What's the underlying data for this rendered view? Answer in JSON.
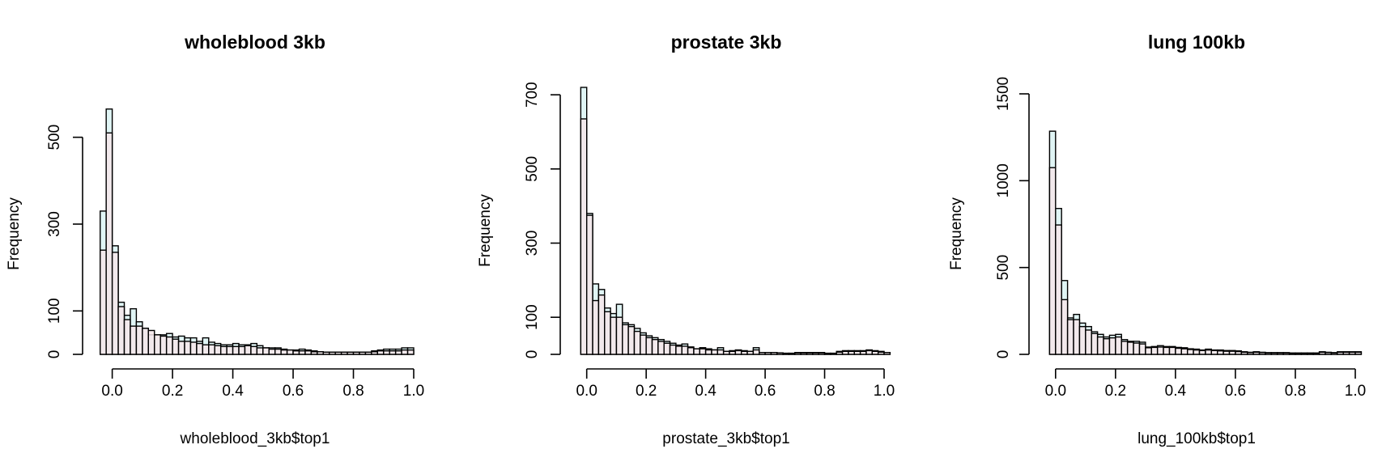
{
  "colors": {
    "series_a": "#e0f5f5",
    "series_b": "#f5e6ea",
    "stroke": "#000000"
  },
  "chart_data": [
    {
      "type": "bar",
      "title": "wholeblood 3kb",
      "xlabel": "wholeblood_3kb$top1",
      "ylabel": "Frequency",
      "xlim": [
        -0.05,
        1.0
      ],
      "ylim": [
        0,
        600
      ],
      "xticks": [
        0.0,
        0.2,
        0.4,
        0.6,
        0.8,
        1.0
      ],
      "xtick_labels": [
        "0.0",
        "0.2",
        "0.4",
        "0.6",
        "0.8",
        "1.0"
      ],
      "yticks": [
        0,
        100,
        300,
        500
      ],
      "ytick_labels": [
        "0",
        "100",
        "300",
        "500"
      ],
      "bin_start": -0.04,
      "bin_width": 0.02,
      "series": [
        {
          "values": [
            330,
            565,
            250,
            120,
            90,
            105,
            75,
            60,
            45,
            45,
            45,
            48,
            40,
            42,
            38,
            38,
            30,
            38,
            28,
            25,
            22,
            22,
            25,
            22,
            22,
            25,
            20,
            15,
            15,
            15,
            12,
            10,
            10,
            12,
            10,
            8,
            6,
            5,
            5,
            5,
            5,
            5,
            5,
            5,
            5,
            8,
            10,
            12,
            12,
            12,
            15,
            15
          ]
        },
        {
          "values": [
            240,
            510,
            235,
            110,
            80,
            65,
            65,
            60,
            55,
            45,
            42,
            40,
            35,
            30,
            30,
            28,
            25,
            22,
            22,
            20,
            18,
            18,
            18,
            18,
            20,
            18,
            15,
            15,
            12,
            12,
            10,
            10,
            8,
            8,
            8,
            6,
            6,
            5,
            5,
            5,
            5,
            5,
            5,
            5,
            5,
            6,
            8,
            8,
            8,
            8,
            10,
            10
          ]
        }
      ]
    },
    {
      "type": "bar",
      "title": "prostate 3kb",
      "xlabel": "prostate_3kb$top1",
      "ylabel": "Frequency",
      "xlim": [
        -0.04,
        1.0
      ],
      "ylim": [
        0,
        720
      ],
      "xticks": [
        0.0,
        0.2,
        0.4,
        0.6,
        0.8,
        1.0
      ],
      "xtick_labels": [
        "0.0",
        "0.2",
        "0.4",
        "0.6",
        "0.8",
        "1.0"
      ],
      "yticks": [
        0,
        100,
        300,
        500,
        700
      ],
      "ytick_labels": [
        "0",
        "100",
        "300",
        "500",
        "700"
      ],
      "bin_start": -0.02,
      "bin_width": 0.02,
      "series": [
        {
          "values": [
            720,
            380,
            190,
            175,
            125,
            110,
            135,
            85,
            80,
            70,
            58,
            50,
            45,
            40,
            35,
            30,
            25,
            28,
            20,
            15,
            18,
            15,
            12,
            18,
            8,
            10,
            12,
            10,
            8,
            18,
            5,
            5,
            5,
            4,
            3,
            3,
            5,
            5,
            5,
            5,
            5,
            3,
            3,
            8,
            10,
            10,
            10,
            10,
            12,
            10,
            8,
            5
          ]
        },
        {
          "values": [
            635,
            375,
            145,
            160,
            115,
            100,
            100,
            80,
            75,
            62,
            52,
            45,
            40,
            35,
            30,
            25,
            22,
            22,
            18,
            15,
            15,
            12,
            12,
            12,
            8,
            8,
            10,
            8,
            8,
            12,
            5,
            5,
            5,
            4,
            3,
            3,
            4,
            4,
            4,
            4,
            4,
            3,
            3,
            6,
            8,
            8,
            8,
            8,
            10,
            8,
            6,
            5
          ]
        }
      ]
    },
    {
      "type": "bar",
      "title": "lung 100kb",
      "xlabel": "lung_100kb$top1",
      "ylabel": "Frequency",
      "xlim": [
        -0.04,
        1.0
      ],
      "ylim": [
        0,
        1500
      ],
      "xticks": [
        0.0,
        0.2,
        0.4,
        0.6,
        0.8,
        1.0
      ],
      "xtick_labels": [
        "0.0",
        "0.2",
        "0.4",
        "0.6",
        "0.8",
        "1.0"
      ],
      "yticks": [
        0,
        500,
        1000,
        1500
      ],
      "ytick_labels": [
        "0",
        "500",
        "1000",
        "1500"
      ],
      "bin_start": -0.02,
      "bin_width": 0.02,
      "series": [
        {
          "values": [
            1285,
            840,
            425,
            210,
            230,
            180,
            160,
            130,
            115,
            100,
            110,
            115,
            85,
            75,
            75,
            70,
            42,
            45,
            50,
            45,
            45,
            40,
            38,
            32,
            30,
            25,
            30,
            25,
            25,
            22,
            22,
            20,
            15,
            12,
            15,
            12,
            10,
            10,
            10,
            10,
            8,
            8,
            8,
            8,
            8,
            15,
            12,
            10,
            15,
            15,
            15,
            15
          ]
        },
        {
          "values": [
            1075,
            745,
            315,
            200,
            200,
            160,
            140,
            120,
            100,
            90,
            95,
            100,
            75,
            70,
            65,
            60,
            38,
            40,
            42,
            40,
            40,
            35,
            32,
            28,
            25,
            22,
            25,
            22,
            20,
            18,
            18,
            16,
            12,
            10,
            12,
            10,
            8,
            8,
            8,
            8,
            6,
            6,
            6,
            6,
            6,
            12,
            10,
            8,
            12,
            12,
            12,
            12
          ]
        }
      ]
    }
  ]
}
